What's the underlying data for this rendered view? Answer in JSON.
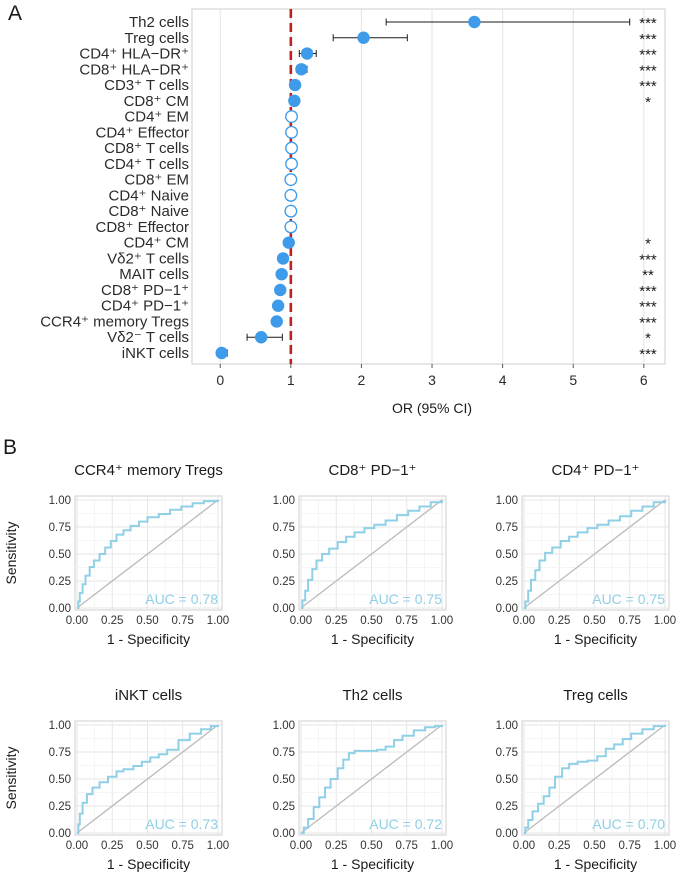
{
  "panel_a_letter": "A",
  "panel_b_letter": "B",
  "chart_data": [
    {
      "type": "forest",
      "xlabel": "OR (95% CI)",
      "xlim": [
        -0.4,
        6.3
      ],
      "xticks": [
        0,
        1,
        2,
        3,
        4,
        5,
        6
      ],
      "reference_line": 1,
      "colors": {
        "point": "#3d9be9",
        "ref_line": "#c0201d",
        "error_bar": "#1a1a1a"
      },
      "rows": [
        {
          "label": "Th2 cells",
          "or": 3.6,
          "lo": 2.35,
          "hi": 5.8,
          "sig": "***",
          "filled": true
        },
        {
          "label": "Treg cells",
          "or": 2.03,
          "lo": 1.6,
          "hi": 2.65,
          "sig": "***",
          "filled": true
        },
        {
          "label": "CD4⁺ HLA−DR⁺",
          "or": 1.23,
          "lo": 1.12,
          "hi": 1.36,
          "sig": "***",
          "filled": true
        },
        {
          "label": "CD8⁺ HLA−DR⁺",
          "or": 1.15,
          "lo": 1.08,
          "hi": 1.23,
          "sig": "***",
          "filled": true
        },
        {
          "label": "CD3⁺ T cells",
          "or": 1.06,
          "lo": 1.03,
          "hi": 1.1,
          "sig": "***",
          "filled": true
        },
        {
          "label": "CD8⁺ CM",
          "or": 1.05,
          "lo": 1.01,
          "hi": 1.09,
          "sig": "*",
          "filled": true
        },
        {
          "label": "CD4⁺ EM",
          "or": 1.01,
          "lo": 0.99,
          "hi": 1.03,
          "sig": "",
          "filled": false
        },
        {
          "label": "CD4⁺ Effector",
          "or": 1.01,
          "lo": 0.99,
          "hi": 1.03,
          "sig": "",
          "filled": false
        },
        {
          "label": "CD8⁺ T cells",
          "or": 1.01,
          "lo": 0.99,
          "hi": 1.03,
          "sig": "",
          "filled": false
        },
        {
          "label": "CD4⁺ T cells",
          "or": 1.01,
          "lo": 0.99,
          "hi": 1.03,
          "sig": "",
          "filled": false
        },
        {
          "label": "CD8⁺ EM",
          "or": 1.0,
          "lo": 0.98,
          "hi": 1.02,
          "sig": "",
          "filled": false
        },
        {
          "label": "CD4⁺ Naive",
          "or": 1.0,
          "lo": 0.98,
          "hi": 1.02,
          "sig": "",
          "filled": false
        },
        {
          "label": "CD8⁺ Naive",
          "or": 1.0,
          "lo": 0.98,
          "hi": 1.02,
          "sig": "",
          "filled": false
        },
        {
          "label": "CD8⁺ Effector",
          "or": 1.0,
          "lo": 0.98,
          "hi": 1.02,
          "sig": "",
          "filled": false
        },
        {
          "label": "CD4⁺ CM",
          "or": 0.97,
          "lo": 0.94,
          "hi": 0.99,
          "sig": "*",
          "filled": true
        },
        {
          "label": "Vδ2⁺ T cells",
          "or": 0.89,
          "lo": 0.85,
          "hi": 0.93,
          "sig": "***",
          "filled": true
        },
        {
          "label": "MAIT cells",
          "or": 0.87,
          "lo": 0.82,
          "hi": 0.92,
          "sig": "**",
          "filled": true
        },
        {
          "label": "CD8⁺ PD−1⁺",
          "or": 0.85,
          "lo": 0.81,
          "hi": 0.89,
          "sig": "***",
          "filled": true
        },
        {
          "label": "CD4⁺ PD−1⁺",
          "or": 0.82,
          "lo": 0.78,
          "hi": 0.86,
          "sig": "***",
          "filled": true
        },
        {
          "label": "CCR4⁺ memory Tregs",
          "or": 0.8,
          "lo": 0.76,
          "hi": 0.85,
          "sig": "***",
          "filled": true
        },
        {
          "label": "Vδ2⁻ T cells",
          "or": 0.58,
          "lo": 0.38,
          "hi": 0.88,
          "sig": "*",
          "filled": true
        },
        {
          "label": "iNKT cells",
          "or": 0.02,
          "lo": 0.0,
          "hi": 0.1,
          "sig": "***",
          "filled": true
        }
      ]
    },
    {
      "type": "roc",
      "panels": [
        {
          "title": "CCR4⁺ memory Tregs",
          "auc_label": "AUC = 0.78",
          "auc": 0.78,
          "curve": [
            [
              0,
              0
            ],
            [
              0.01,
              0.06
            ],
            [
              0.02,
              0.14
            ],
            [
              0.04,
              0.22
            ],
            [
              0.06,
              0.3
            ],
            [
              0.09,
              0.38
            ],
            [
              0.12,
              0.44
            ],
            [
              0.16,
              0.5
            ],
            [
              0.2,
              0.56
            ],
            [
              0.24,
              0.62
            ],
            [
              0.28,
              0.68
            ],
            [
              0.33,
              0.72
            ],
            [
              0.38,
              0.76
            ],
            [
              0.44,
              0.8
            ],
            [
              0.5,
              0.84
            ],
            [
              0.58,
              0.87
            ],
            [
              0.66,
              0.91
            ],
            [
              0.74,
              0.94
            ],
            [
              0.82,
              0.97
            ],
            [
              0.9,
              0.99
            ],
            [
              1,
              1
            ]
          ]
        },
        {
          "title": "CD8⁺ PD−1⁺",
          "auc_label": "AUC = 0.75",
          "auc": 0.75,
          "curve": [
            [
              0,
              0
            ],
            [
              0.01,
              0.07
            ],
            [
              0.03,
              0.16
            ],
            [
              0.05,
              0.26
            ],
            [
              0.08,
              0.36
            ],
            [
              0.11,
              0.44
            ],
            [
              0.15,
              0.5
            ],
            [
              0.2,
              0.55
            ],
            [
              0.26,
              0.61
            ],
            [
              0.32,
              0.66
            ],
            [
              0.38,
              0.7
            ],
            [
              0.45,
              0.74
            ],
            [
              0.52,
              0.77
            ],
            [
              0.6,
              0.81
            ],
            [
              0.68,
              0.86
            ],
            [
              0.76,
              0.9
            ],
            [
              0.84,
              0.94
            ],
            [
              0.92,
              0.98
            ],
            [
              1,
              1
            ]
          ]
        },
        {
          "title": "CD4⁺ PD−1⁺",
          "auc_label": "AUC = 0.75",
          "auc": 0.75,
          "curve": [
            [
              0,
              0
            ],
            [
              0.01,
              0.06
            ],
            [
              0.03,
              0.16
            ],
            [
              0.05,
              0.26
            ],
            [
              0.08,
              0.35
            ],
            [
              0.11,
              0.44
            ],
            [
              0.15,
              0.51
            ],
            [
              0.2,
              0.56
            ],
            [
              0.26,
              0.62
            ],
            [
              0.32,
              0.66
            ],
            [
              0.38,
              0.7
            ],
            [
              0.45,
              0.74
            ],
            [
              0.52,
              0.77
            ],
            [
              0.6,
              0.81
            ],
            [
              0.68,
              0.85
            ],
            [
              0.76,
              0.9
            ],
            [
              0.84,
              0.94
            ],
            [
              0.92,
              0.98
            ],
            [
              1,
              1
            ]
          ]
        },
        {
          "title": "iNKT cells",
          "auc_label": "AUC = 0.73",
          "auc": 0.73,
          "curve": [
            [
              0,
              0
            ],
            [
              0.01,
              0.08
            ],
            [
              0.02,
              0.18
            ],
            [
              0.04,
              0.28
            ],
            [
              0.07,
              0.36
            ],
            [
              0.11,
              0.42
            ],
            [
              0.16,
              0.47
            ],
            [
              0.22,
              0.52
            ],
            [
              0.28,
              0.57
            ],
            [
              0.33,
              0.59
            ],
            [
              0.4,
              0.62
            ],
            [
              0.46,
              0.66
            ],
            [
              0.52,
              0.7
            ],
            [
              0.58,
              0.73
            ],
            [
              0.64,
              0.77
            ],
            [
              0.72,
              0.86
            ],
            [
              0.8,
              0.92
            ],
            [
              0.88,
              0.96
            ],
            [
              0.95,
              0.99
            ],
            [
              1,
              1
            ]
          ]
        },
        {
          "title": "Th2 cells",
          "auc_label": "AUC = 0.72",
          "auc": 0.72,
          "curve": [
            [
              0,
              0
            ],
            [
              0.02,
              0.05
            ],
            [
              0.05,
              0.13
            ],
            [
              0.09,
              0.24
            ],
            [
              0.13,
              0.33
            ],
            [
              0.17,
              0.42
            ],
            [
              0.21,
              0.5
            ],
            [
              0.26,
              0.6
            ],
            [
              0.3,
              0.68
            ],
            [
              0.34,
              0.74
            ],
            [
              0.38,
              0.76
            ],
            [
              0.46,
              0.76
            ],
            [
              0.54,
              0.77
            ],
            [
              0.6,
              0.8
            ],
            [
              0.66,
              0.86
            ],
            [
              0.72,
              0.9
            ],
            [
              0.8,
              0.95
            ],
            [
              0.88,
              0.98
            ],
            [
              0.95,
              0.99
            ],
            [
              1,
              1
            ]
          ]
        },
        {
          "title": "Treg cells",
          "auc_label": "AUC = 0.70",
          "auc": 0.7,
          "curve": [
            [
              0,
              0
            ],
            [
              0.01,
              0.05
            ],
            [
              0.03,
              0.12
            ],
            [
              0.06,
              0.2
            ],
            [
              0.1,
              0.27
            ],
            [
              0.14,
              0.34
            ],
            [
              0.18,
              0.42
            ],
            [
              0.22,
              0.52
            ],
            [
              0.27,
              0.6
            ],
            [
              0.32,
              0.64
            ],
            [
              0.38,
              0.66
            ],
            [
              0.45,
              0.67
            ],
            [
              0.52,
              0.71
            ],
            [
              0.58,
              0.78
            ],
            [
              0.64,
              0.82
            ],
            [
              0.7,
              0.87
            ],
            [
              0.76,
              0.92
            ],
            [
              0.84,
              0.96
            ],
            [
              0.92,
              0.99
            ],
            [
              1,
              1
            ]
          ]
        }
      ],
      "xlabel": "1 - Specificity",
      "ylabel": "Sensitivity",
      "ticks": [
        "0.00",
        "0.25",
        "0.50",
        "0.75",
        "1.00"
      ],
      "tick_values": [
        0,
        0.25,
        0.5,
        0.75,
        1
      ],
      "colors": {
        "curve": "#8fd0e6",
        "diagonal": "#bdbdbd",
        "auc_text": "#8fd0e6"
      }
    }
  ]
}
